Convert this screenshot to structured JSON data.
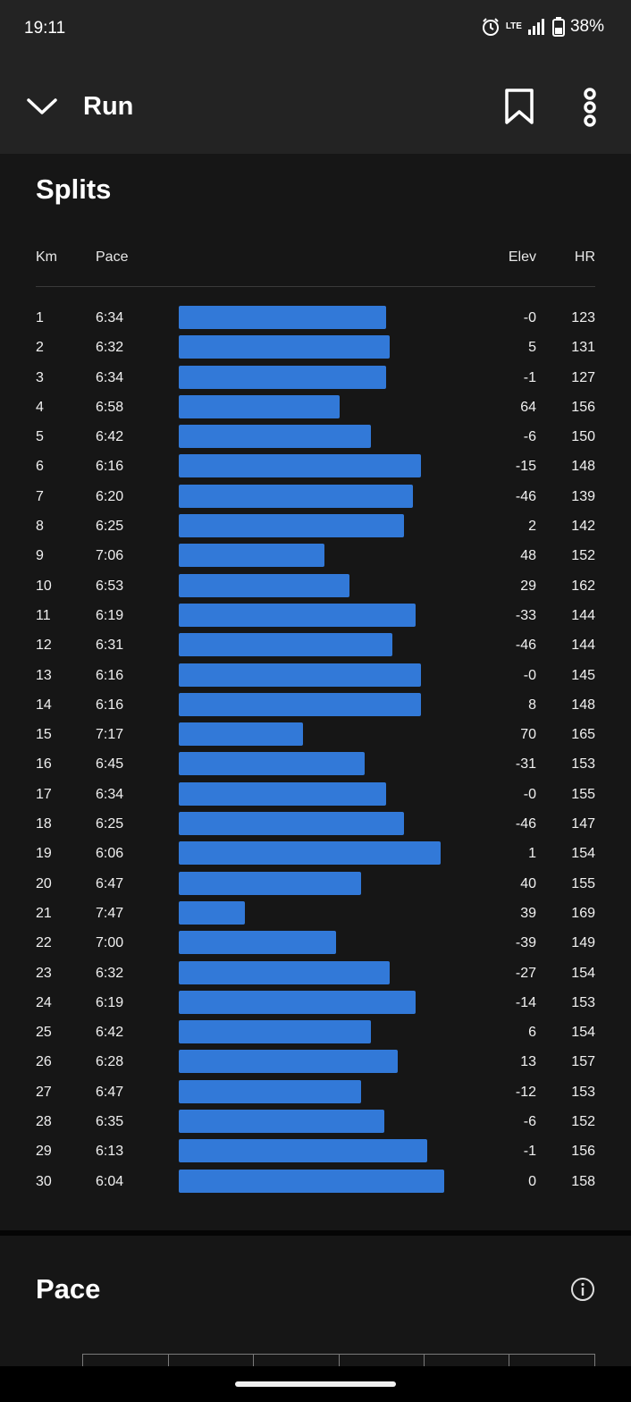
{
  "status": {
    "time": "19:11",
    "network": "LTE",
    "battery": "38%"
  },
  "header": {
    "title": "Run"
  },
  "splits": {
    "title": "Splits",
    "columns": {
      "km": "Km",
      "pace": "Pace",
      "elev": "Elev",
      "hr": "HR"
    },
    "rows": [
      {
        "km": "1",
        "pace": "6:34",
        "elev": "-0",
        "hr": "123"
      },
      {
        "km": "2",
        "pace": "6:32",
        "elev": "5",
        "hr": "131"
      },
      {
        "km": "3",
        "pace": "6:34",
        "elev": "-1",
        "hr": "127"
      },
      {
        "km": "4",
        "pace": "6:58",
        "elev": "64",
        "hr": "156"
      },
      {
        "km": "5",
        "pace": "6:42",
        "elev": "-6",
        "hr": "150"
      },
      {
        "km": "6",
        "pace": "6:16",
        "elev": "-15",
        "hr": "148"
      },
      {
        "km": "7",
        "pace": "6:20",
        "elev": "-46",
        "hr": "139"
      },
      {
        "km": "8",
        "pace": "6:25",
        "elev": "2",
        "hr": "142"
      },
      {
        "km": "9",
        "pace": "7:06",
        "elev": "48",
        "hr": "152"
      },
      {
        "km": "10",
        "pace": "6:53",
        "elev": "29",
        "hr": "162"
      },
      {
        "km": "11",
        "pace": "6:19",
        "elev": "-33",
        "hr": "144"
      },
      {
        "km": "12",
        "pace": "6:31",
        "elev": "-46",
        "hr": "144"
      },
      {
        "km": "13",
        "pace": "6:16",
        "elev": "-0",
        "hr": "145"
      },
      {
        "km": "14",
        "pace": "6:16",
        "elev": "8",
        "hr": "148"
      },
      {
        "km": "15",
        "pace": "7:17",
        "elev": "70",
        "hr": "165"
      },
      {
        "km": "16",
        "pace": "6:45",
        "elev": "-31",
        "hr": "153"
      },
      {
        "km": "17",
        "pace": "6:34",
        "elev": "-0",
        "hr": "155"
      },
      {
        "km": "18",
        "pace": "6:25",
        "elev": "-46",
        "hr": "147"
      },
      {
        "km": "19",
        "pace": "6:06",
        "elev": "1",
        "hr": "154"
      },
      {
        "km": "20",
        "pace": "6:47",
        "elev": "40",
        "hr": "155"
      },
      {
        "km": "21",
        "pace": "7:47",
        "elev": "39",
        "hr": "169"
      },
      {
        "km": "22",
        "pace": "7:00",
        "elev": "-39",
        "hr": "149"
      },
      {
        "km": "23",
        "pace": "6:32",
        "elev": "-27",
        "hr": "154"
      },
      {
        "km": "24",
        "pace": "6:19",
        "elev": "-14",
        "hr": "153"
      },
      {
        "km": "25",
        "pace": "6:42",
        "elev": "6",
        "hr": "154"
      },
      {
        "km": "26",
        "pace": "6:28",
        "elev": "13",
        "hr": "157"
      },
      {
        "km": "27",
        "pace": "6:47",
        "elev": "-12",
        "hr": "153"
      },
      {
        "km": "28",
        "pace": "6:35",
        "elev": "-6",
        "hr": "152"
      },
      {
        "km": "29",
        "pace": "6:13",
        "elev": "-1",
        "hr": "156"
      },
      {
        "km": "30",
        "pace": "6:04",
        "elev": "0",
        "hr": "158"
      }
    ]
  },
  "pace_section": {
    "title": "Pace"
  },
  "colors": {
    "bar": "#3279d8",
    "background": "#161616",
    "header": "#232323"
  }
}
